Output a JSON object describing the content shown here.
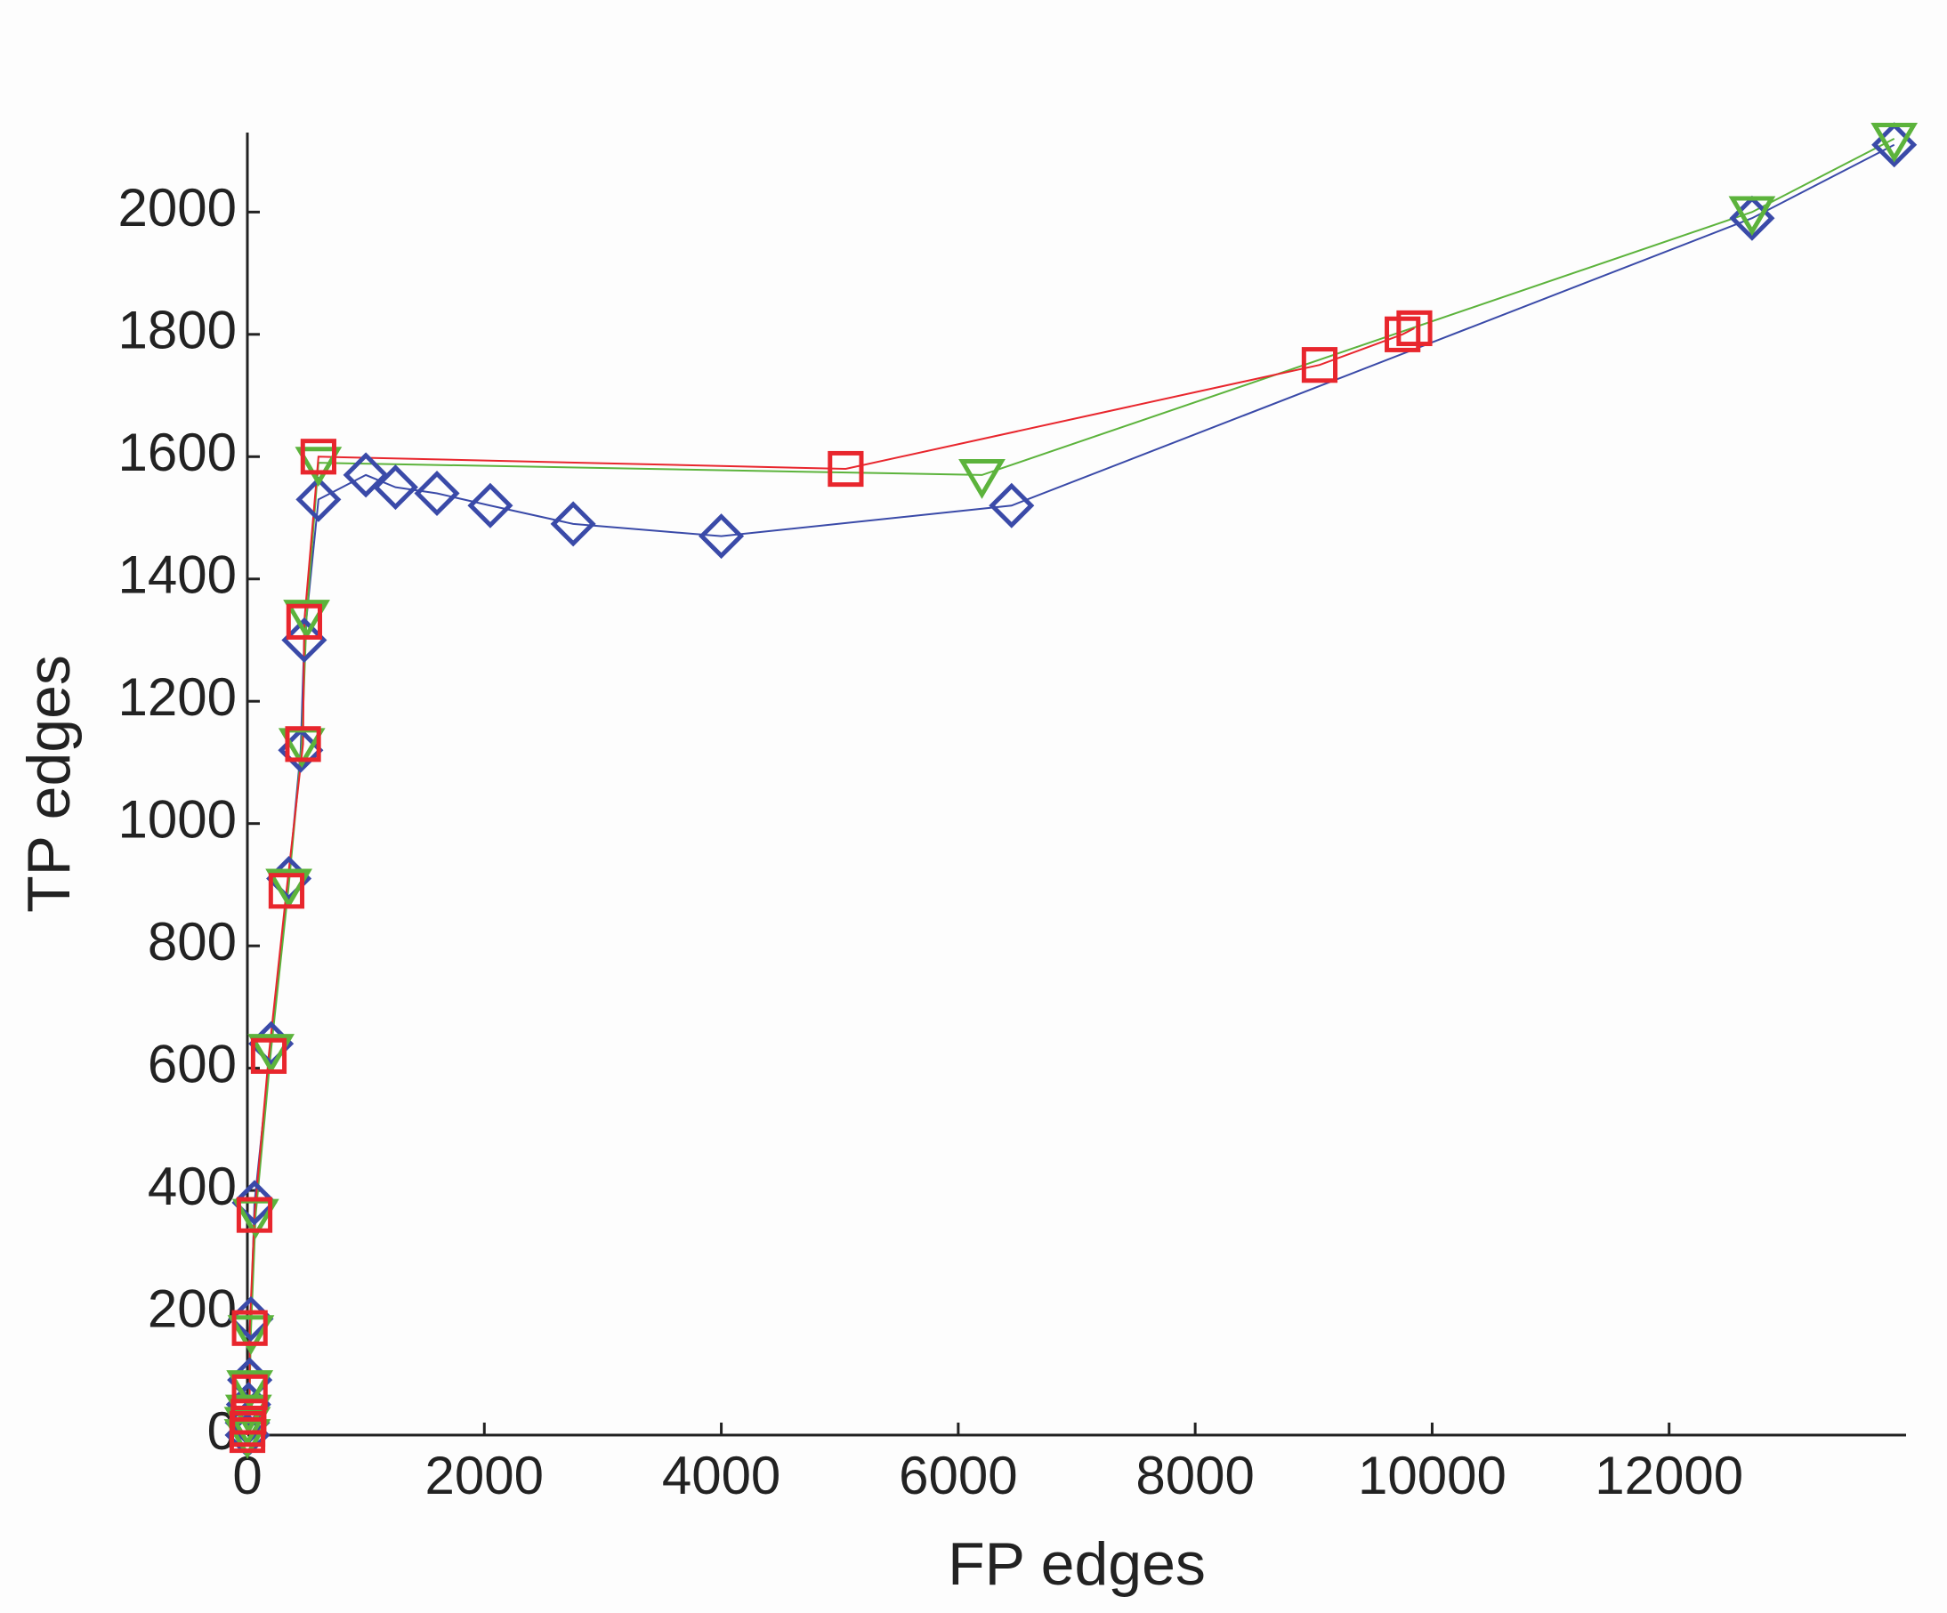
{
  "chart_data": {
    "type": "line",
    "xlabel": "FP edges",
    "ylabel": "TP edges",
    "xlim": [
      0,
      14000
    ],
    "ylim": [
      0,
      2130
    ],
    "xticks": [
      0,
      2000,
      4000,
      6000,
      8000,
      10000,
      12000
    ],
    "yticks": [
      0,
      200,
      400,
      600,
      800,
      1000,
      1200,
      1400,
      1600,
      1800,
      2000
    ],
    "series": [
      {
        "color": "#3a4aa8",
        "marker": "diamond",
        "x": [
          0,
          0,
          10,
          20,
          30,
          60,
          200,
          350,
          450,
          480,
          600,
          1000,
          1250,
          1600,
          2050,
          2750,
          4000,
          6450,
          12700,
          13900
        ],
        "values": [
          0,
          20,
          50,
          90,
          190,
          380,
          640,
          910,
          1120,
          1300,
          1530,
          1570,
          1550,
          1540,
          1520,
          1490,
          1470,
          1520,
          1990,
          2110
        ]
      },
      {
        "color": "#5cb33c",
        "marker": "triangle-down",
        "x": [
          0,
          0,
          10,
          20,
          30,
          70,
          200,
          350,
          460,
          500,
          600,
          6200,
          12700,
          13900
        ],
        "values": [
          0,
          20,
          40,
          80,
          170,
          360,
          630,
          900,
          1130,
          1340,
          1590,
          1570,
          2000,
          2120
        ]
      },
      {
        "color": "#e8262d",
        "marker": "square",
        "x": [
          0,
          0,
          10,
          20,
          20,
          60,
          180,
          330,
          470,
          480,
          600,
          5050,
          9050,
          9750,
          9850
        ],
        "values": [
          0,
          10,
          30,
          70,
          175,
          360,
          620,
          890,
          1130,
          1330,
          1600,
          1580,
          1750,
          1800,
          1810
        ]
      }
    ]
  }
}
